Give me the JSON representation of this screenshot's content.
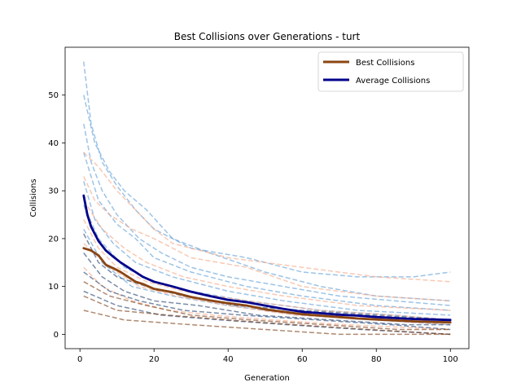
{
  "chart_data": {
    "type": "line",
    "title": "Best Collisions over Generations - turt",
    "xlabel": "Generation",
    "ylabel": "Collisions",
    "xlim": [
      -4,
      105
    ],
    "ylim": [
      -3,
      60
    ],
    "xticks": [
      0,
      20,
      40,
      60,
      80,
      100
    ],
    "yticks": [
      0,
      10,
      20,
      30,
      40,
      50
    ],
    "legend_position": "top-right",
    "colors": {
      "best": "#8B4513",
      "average": "#00008B",
      "run_blue": "#5B9BD5",
      "run_orange": "#F4A582",
      "run_navy": "#1F3F6F",
      "run_brown": "#7A3B12"
    },
    "series": [
      {
        "name": "Best Collisions",
        "style": "solid-thick",
        "x": [
          1,
          3,
          5,
          7,
          9,
          11,
          13,
          15,
          17,
          20,
          25,
          30,
          35,
          40,
          45,
          50,
          55,
          60,
          65,
          70,
          75,
          80,
          85,
          90,
          95,
          100
        ],
        "y": [
          18,
          17.5,
          16.5,
          14.5,
          13.8,
          13,
          12,
          11,
          10.5,
          9.5,
          8.8,
          7.8,
          7.1,
          6.5,
          6.0,
          5.2,
          4.7,
          4.2,
          3.9,
          3.6,
          3.3,
          3.1,
          2.9,
          2.7,
          2.6,
          2.5
        ]
      },
      {
        "name": "Average Collisions",
        "style": "solid-thick",
        "x": [
          1,
          2,
          3,
          4,
          5,
          7,
          9,
          11,
          13,
          15,
          17,
          20,
          25,
          30,
          35,
          40,
          45,
          50,
          55,
          60,
          65,
          70,
          75,
          80,
          85,
          90,
          95,
          100
        ],
        "y": [
          29,
          25,
          22.5,
          21,
          19.5,
          17.5,
          16.2,
          15,
          14,
          13,
          12,
          11,
          10,
          8.9,
          8,
          7.2,
          6.7,
          6,
          5.3,
          4.7,
          4.4,
          4.1,
          3.9,
          3.6,
          3.4,
          3.2,
          3.1,
          3
        ]
      }
    ],
    "runs": [
      {
        "color": "run_blue",
        "x": [
          1,
          3,
          6,
          10,
          15,
          20,
          30,
          45,
          60,
          75,
          90,
          100
        ],
        "y": [
          57,
          44,
          36,
          31,
          26,
          22,
          18,
          16,
          13,
          12,
          12,
          13
        ]
      },
      {
        "color": "run_blue",
        "x": [
          1,
          4,
          8,
          12,
          18,
          25,
          35,
          50,
          65,
          80,
          100
        ],
        "y": [
          50,
          40,
          34,
          30,
          26,
          20,
          17,
          13,
          10,
          8,
          7
        ]
      },
      {
        "color": "run_blue",
        "x": [
          1,
          3,
          6,
          10,
          16,
          22,
          30,
          40,
          55,
          70,
          85,
          100
        ],
        "y": [
          44,
          36,
          30,
          25,
          20,
          17,
          14,
          12,
          10,
          8,
          7,
          6
        ]
      },
      {
        "color": "run_blue",
        "x": [
          1,
          5,
          10,
          15,
          20,
          30,
          45,
          60,
          80,
          100
        ],
        "y": [
          38,
          28,
          23,
          20,
          16,
          13,
          10,
          8,
          6,
          5
        ]
      },
      {
        "color": "run_blue",
        "x": [
          1,
          4,
          9,
          15,
          25,
          40,
          55,
          75,
          100
        ],
        "y": [
          32,
          24,
          19,
          15,
          12,
          9,
          7,
          5,
          4
        ]
      },
      {
        "color": "run_blue",
        "x": [
          1,
          5,
          12,
          20,
          30,
          45,
          65,
          85,
          100
        ],
        "y": [
          27,
          20,
          14,
          11,
          9,
          7,
          5,
          4,
          3
        ]
      },
      {
        "color": "run_blue",
        "x": [
          1,
          6,
          14,
          25,
          40,
          60,
          80,
          100
        ],
        "y": [
          22,
          15,
          10,
          8,
          6,
          4,
          3,
          2
        ]
      },
      {
        "color": "run_orange",
        "x": [
          1,
          5,
          10,
          15,
          20,
          25,
          40,
          60,
          80,
          100
        ],
        "y": [
          38,
          35,
          30,
          26,
          22,
          19,
          16,
          14,
          12,
          11
        ]
      },
      {
        "color": "run_orange",
        "x": [
          1,
          4,
          8,
          14,
          20,
          30,
          45,
          60,
          80,
          100
        ],
        "y": [
          33,
          28,
          25,
          22,
          20,
          16,
          14,
          10,
          8,
          7
        ]
      },
      {
        "color": "run_orange",
        "x": [
          1,
          6,
          12,
          18,
          28,
          40,
          55,
          75,
          100
        ],
        "y": [
          28,
          22,
          18,
          15,
          12,
          10,
          8,
          6,
          5
        ]
      },
      {
        "color": "run_orange",
        "x": [
          1,
          5,
          10,
          18,
          28,
          45,
          65,
          85,
          100
        ],
        "y": [
          24,
          18,
          14,
          11,
          9,
          7,
          5,
          4,
          3
        ]
      },
      {
        "color": "run_orange",
        "x": [
          1,
          8,
          16,
          26,
          40,
          58,
          80,
          100
        ],
        "y": [
          19,
          14,
          10,
          8,
          6,
          4,
          3,
          2
        ]
      },
      {
        "color": "run_orange",
        "x": [
          1,
          6,
          14,
          24,
          36,
          52,
          72,
          100
        ],
        "y": [
          14,
          10,
          7,
          5,
          4,
          3,
          2,
          1
        ]
      },
      {
        "color": "run_navy",
        "x": [
          1,
          5,
          10,
          18,
          28,
          42,
          60,
          80,
          100
        ],
        "y": [
          21,
          15,
          12,
          10,
          8,
          6,
          5,
          4,
          3
        ]
      },
      {
        "color": "run_navy",
        "x": [
          1,
          6,
          12,
          20,
          32,
          48,
          68,
          88,
          100
        ],
        "y": [
          17,
          12,
          9,
          7,
          6,
          4,
          3,
          2,
          2
        ]
      },
      {
        "color": "run_navy",
        "x": [
          1,
          8,
          16,
          28,
          44,
          64,
          84,
          100
        ],
        "y": [
          13,
          9,
          7,
          5,
          4,
          3,
          2,
          1
        ]
      },
      {
        "color": "run_navy",
        "x": [
          1,
          10,
          22,
          38,
          56,
          76,
          100
        ],
        "y": [
          9,
          6,
          4,
          3,
          2,
          1,
          0
        ]
      },
      {
        "color": "run_brown",
        "x": [
          1,
          8,
          18,
          30,
          46,
          66,
          86,
          100
        ],
        "y": [
          11,
          8,
          6,
          4,
          3,
          2,
          1,
          1
        ]
      },
      {
        "color": "run_brown",
        "x": [
          1,
          10,
          24,
          40,
          58,
          78,
          100
        ],
        "y": [
          8,
          5,
          4,
          3,
          2,
          1,
          0
        ]
      },
      {
        "color": "run_brown",
        "x": [
          1,
          12,
          30,
          50,
          70,
          100
        ],
        "y": [
          5,
          3,
          2,
          1,
          0,
          0
        ]
      }
    ]
  }
}
